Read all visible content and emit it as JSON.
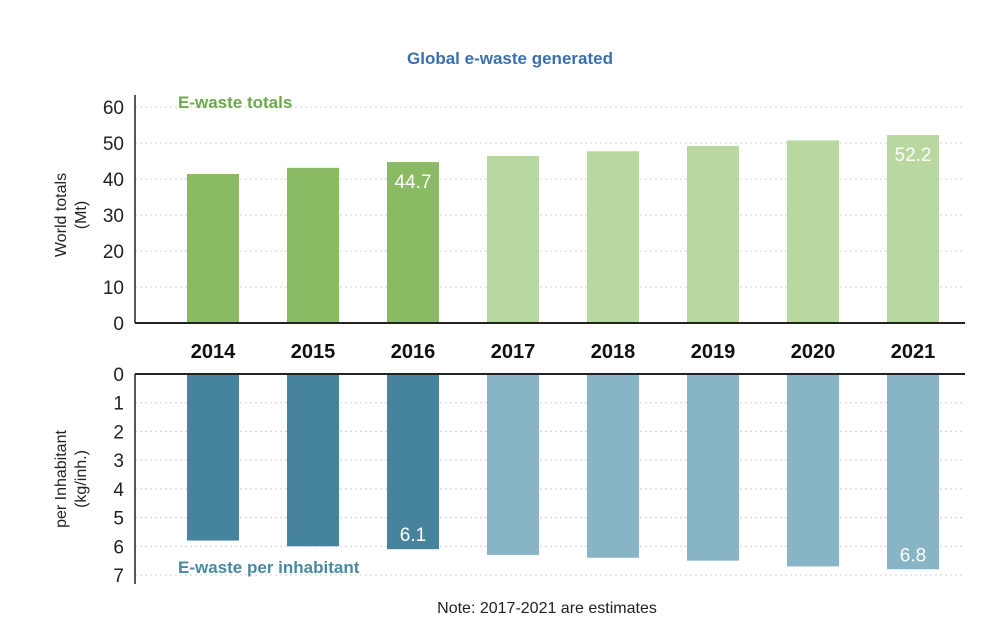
{
  "chart_data": [
    {
      "type": "bar",
      "title": "Global e-waste generated",
      "panel_label": "E-waste totals",
      "ylabel": "World totals\n(Mt)",
      "categories": [
        "2014",
        "2015",
        "2016",
        "2017",
        "2018",
        "2019",
        "2020",
        "2021"
      ],
      "values": [
        41.4,
        43.1,
        44.7,
        46.4,
        47.7,
        49.2,
        50.7,
        52.2
      ],
      "ylim": [
        0,
        60
      ],
      "yticks": [
        0,
        10,
        20,
        30,
        40,
        50,
        60
      ],
      "data_labels": {
        "2016": "44.7",
        "2021": "52.2"
      },
      "estimate_categories": [
        "2017",
        "2018",
        "2019",
        "2020",
        "2021"
      ],
      "grid": true
    },
    {
      "type": "bar",
      "panel_label": "E-waste per inhabitant",
      "ylabel": "per Inhabitant\n(kg/inh.)",
      "categories": [
        "2014",
        "2015",
        "2016",
        "2017",
        "2018",
        "2019",
        "2020",
        "2021"
      ],
      "values": [
        5.8,
        6.0,
        6.1,
        6.3,
        6.4,
        6.5,
        6.7,
        6.8
      ],
      "ylim": [
        0,
        7
      ],
      "yticks": [
        0,
        1,
        2,
        3,
        4,
        5,
        6,
        7
      ],
      "inverted": true,
      "data_labels": {
        "2016": "6.1",
        "2021": "6.8"
      },
      "estimate_categories": [
        "2017",
        "2018",
        "2019",
        "2020",
        "2021"
      ],
      "grid": true
    }
  ],
  "note": "Note: 2017-2021 are estimates",
  "colors": {
    "title": "#3a6fb0",
    "totals_actual": "#8aba64",
    "totals_estimate": "#b9d89f",
    "totals_label": "#6aaa4a",
    "per_actual": "#46839c",
    "per_estimate": "#88b5c5",
    "per_label": "#4a8aa0",
    "grid": "#d0d0d0",
    "axis": "#222222"
  }
}
